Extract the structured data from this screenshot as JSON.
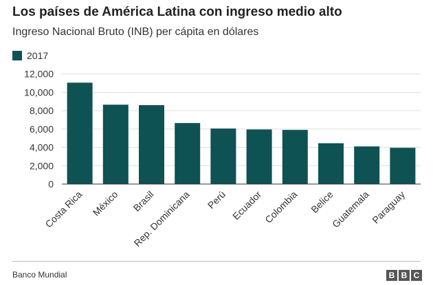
{
  "chart_data": {
    "type": "bar",
    "title": "Los países de América Latina con ingreso medio alto",
    "subtitle": "Ingreso Nacional Bruto (INB) per cápita en dólares",
    "legend": [
      {
        "label": "2017",
        "color": "#0e5253"
      }
    ],
    "categories": [
      "Costa Rica",
      "México",
      "Brasil",
      "Rep. Dominicana",
      "Perú",
      "Ecuador",
      "Colombia",
      "Belice",
      "Guatemala",
      "Paraguay"
    ],
    "series": [
      {
        "name": "2017",
        "values": [
          11050,
          8650,
          8600,
          6650,
          6050,
          5950,
          5900,
          4450,
          4100,
          3950
        ]
      }
    ],
    "yticks": [
      "0",
      "2,000",
      "4,000",
      "6,000",
      "8,000",
      "10,000",
      "12,000"
    ],
    "ytick_values": [
      0,
      2000,
      4000,
      6000,
      8000,
      10000,
      12000
    ],
    "ylim": [
      0,
      12500
    ],
    "xlabel": "",
    "ylabel": "",
    "grid": true,
    "legend_position": "top-left"
  },
  "footer": {
    "source": "Banco Mundial",
    "logo_letters": [
      "B",
      "B",
      "C"
    ]
  }
}
